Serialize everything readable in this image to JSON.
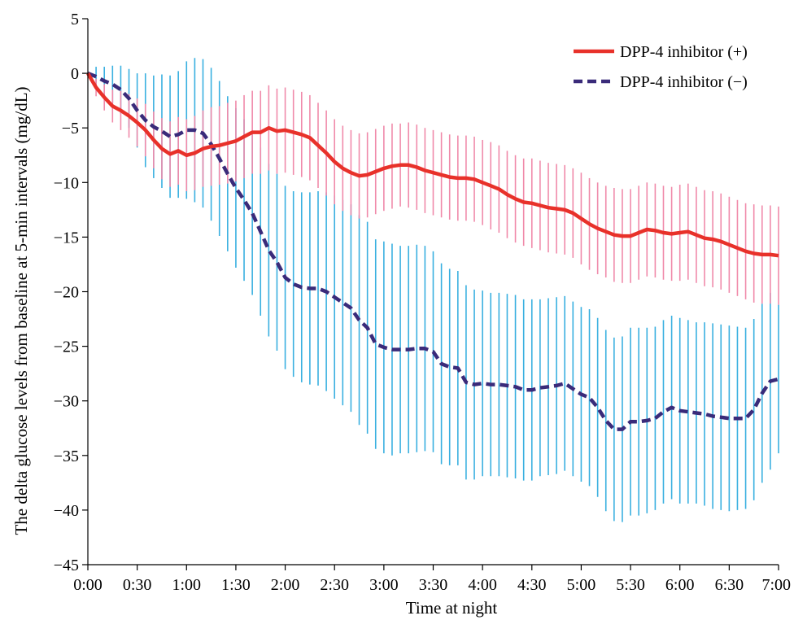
{
  "chart_data": {
    "type": "line",
    "title": "",
    "xlabel": "Time at night",
    "ylabel": "The delta glucose levels from baseline at 5-min intervals (mg/dL)",
    "xlim": [
      0,
      420
    ],
    "ylim": [
      -45,
      5
    ],
    "x_ticks": [
      0,
      30,
      60,
      90,
      120,
      150,
      180,
      210,
      240,
      270,
      300,
      330,
      360,
      390,
      420
    ],
    "x_tick_labels": [
      "0:00",
      "0:30",
      "1:00",
      "1:30",
      "2:00",
      "2:30",
      "3:00",
      "3:30",
      "4:00",
      "4:30",
      "5:00",
      "5:30",
      "6:00",
      "6:30",
      "7:00"
    ],
    "y_ticks": [
      5,
      0,
      -5,
      -10,
      -15,
      -20,
      -25,
      -30,
      -35,
      -40,
      -45
    ],
    "y_tick_labels": [
      "5",
      "0",
      "−5",
      "−10",
      "−15",
      "−20",
      "−25",
      "−30",
      "−35",
      "−40",
      "−45"
    ],
    "grid": false,
    "legend_position": "top-right",
    "error_bars": "vertical lines (mean ± SE) at each 5-min interval",
    "series": [
      {
        "name": "DPP-4 inhibitor (+)",
        "color": "#e8312a",
        "error_color": "#f08aaa",
        "line_style": "solid",
        "x": [
          0,
          5,
          10,
          15,
          20,
          25,
          30,
          35,
          40,
          45,
          50,
          55,
          60,
          65,
          70,
          75,
          80,
          85,
          90,
          95,
          100,
          105,
          110,
          115,
          120,
          125,
          130,
          135,
          140,
          145,
          150,
          155,
          160,
          165,
          170,
          175,
          180,
          185,
          190,
          195,
          200,
          205,
          210,
          215,
          220,
          225,
          230,
          235,
          240,
          245,
          250,
          255,
          260,
          265,
          270,
          275,
          280,
          285,
          290,
          295,
          300,
          305,
          310,
          315,
          320,
          325,
          330,
          335,
          340,
          345,
          350,
          355,
          360,
          365,
          370,
          375,
          380,
          385,
          390,
          395,
          400,
          405,
          410,
          415,
          420
        ],
        "y": [
          0.0,
          -1.3,
          -2.2,
          -3.0,
          -3.4,
          -3.9,
          -4.5,
          -5.2,
          -6.1,
          -6.9,
          -7.4,
          -7.1,
          -7.5,
          -7.3,
          -6.9,
          -6.7,
          -6.6,
          -6.4,
          -6.2,
          -5.8,
          -5.4,
          -5.4,
          -5.0,
          -5.3,
          -5.2,
          -5.4,
          -5.6,
          -5.9,
          -6.6,
          -7.3,
          -8.1,
          -8.7,
          -9.1,
          -9.4,
          -9.3,
          -9.0,
          -8.7,
          -8.5,
          -8.4,
          -8.4,
          -8.6,
          -8.9,
          -9.1,
          -9.3,
          -9.5,
          -9.6,
          -9.6,
          -9.7,
          -10.0,
          -10.3,
          -10.6,
          -11.1,
          -11.5,
          -11.8,
          -11.9,
          -12.1,
          -12.3,
          -12.4,
          -12.5,
          -12.8,
          -13.3,
          -13.8,
          -14.2,
          -14.5,
          -14.8,
          -14.9,
          -14.9,
          -14.6,
          -14.3,
          -14.4,
          -14.6,
          -14.7,
          -14.6,
          -14.5,
          -14.8,
          -15.1,
          -15.2,
          -15.4,
          -15.7,
          -16.0,
          -16.3,
          -16.5,
          -16.6,
          -16.6,
          -16.7
        ],
        "error": [
          0.0,
          0.8,
          1.2,
          1.5,
          1.8,
          2.0,
          2.2,
          2.4,
          2.6,
          2.8,
          3.0,
          3.1,
          3.3,
          3.4,
          3.5,
          3.6,
          3.6,
          3.7,
          3.7,
          3.8,
          3.8,
          3.8,
          3.9,
          3.9,
          3.9,
          3.9,
          3.9,
          3.9,
          3.9,
          3.9,
          3.9,
          3.9,
          3.9,
          3.9,
          3.9,
          3.9,
          3.9,
          3.9,
          3.8,
          3.9,
          3.9,
          3.9,
          3.9,
          3.9,
          3.9,
          3.9,
          3.9,
          3.9,
          3.9,
          4.0,
          4.0,
          4.0,
          4.0,
          4.0,
          4.1,
          4.1,
          4.1,
          4.1,
          4.1,
          4.1,
          4.2,
          4.2,
          4.2,
          4.2,
          4.3,
          4.3,
          4.3,
          4.3,
          4.3,
          4.3,
          4.3,
          4.3,
          4.4,
          4.4,
          4.4,
          4.4,
          4.4,
          4.4,
          4.4,
          4.4,
          4.4,
          4.5,
          4.5,
          4.5,
          4.5
        ]
      },
      {
        "name": "DPP-4 inhibitor (−)",
        "color": "#3a2b7a",
        "error_color": "#3ab0e0",
        "line_style": "dashed",
        "x": [
          0,
          5,
          10,
          15,
          20,
          25,
          30,
          35,
          40,
          45,
          50,
          55,
          60,
          65,
          70,
          75,
          80,
          85,
          90,
          95,
          100,
          105,
          110,
          115,
          120,
          125,
          130,
          135,
          140,
          145,
          150,
          155,
          160,
          165,
          170,
          175,
          180,
          185,
          190,
          195,
          200,
          205,
          210,
          215,
          220,
          225,
          230,
          235,
          240,
          245,
          250,
          255,
          260,
          265,
          270,
          275,
          280,
          285,
          290,
          295,
          300,
          305,
          310,
          315,
          320,
          325,
          330,
          335,
          340,
          345,
          350,
          355,
          360,
          365,
          370,
          375,
          380,
          385,
          390,
          395,
          400,
          405,
          410,
          415,
          420
        ],
        "y": [
          0.0,
          -0.3,
          -0.7,
          -1.0,
          -1.5,
          -2.3,
          -3.4,
          -4.3,
          -4.9,
          -5.3,
          -5.8,
          -5.6,
          -5.2,
          -5.2,
          -5.5,
          -6.5,
          -7.8,
          -9.2,
          -10.5,
          -11.6,
          -12.8,
          -14.5,
          -16.2,
          -17.3,
          -18.7,
          -19.3,
          -19.6,
          -19.7,
          -19.7,
          -20.0,
          -20.5,
          -21.0,
          -21.5,
          -22.6,
          -23.3,
          -24.8,
          -25.1,
          -25.3,
          -25.3,
          -25.3,
          -25.2,
          -25.2,
          -25.5,
          -26.6,
          -26.9,
          -27.0,
          -28.3,
          -28.5,
          -28.4,
          -28.5,
          -28.5,
          -28.6,
          -28.7,
          -29.0,
          -29.0,
          -28.8,
          -28.7,
          -28.6,
          -28.4,
          -28.9,
          -29.4,
          -29.7,
          -30.6,
          -31.8,
          -32.6,
          -32.6,
          -31.9,
          -31.9,
          -31.8,
          -31.6,
          -31.0,
          -30.6,
          -30.9,
          -31.0,
          -31.1,
          -31.2,
          -31.4,
          -31.5,
          -31.6,
          -31.6,
          -31.6,
          -30.8,
          -29.3,
          -28.2,
          -28.0
        ],
        "error": [
          0.0,
          0.9,
          1.3,
          1.7,
          2.2,
          2.7,
          3.4,
          4.3,
          4.7,
          5.2,
          5.6,
          5.8,
          6.3,
          6.6,
          6.8,
          7.0,
          7.1,
          7.1,
          7.3,
          7.4,
          7.5,
          7.7,
          7.9,
          8.1,
          8.4,
          8.5,
          8.7,
          8.8,
          8.9,
          9.1,
          9.3,
          9.4,
          9.5,
          9.6,
          9.7,
          9.6,
          9.7,
          9.7,
          9.5,
          9.5,
          9.5,
          9.4,
          9.2,
          9.2,
          9.0,
          8.9,
          8.9,
          8.7,
          8.5,
          8.4,
          8.4,
          8.4,
          8.4,
          8.3,
          8.3,
          8.1,
          8.1,
          8.1,
          8.0,
          8.0,
          8.0,
          8.1,
          8.2,
          8.3,
          8.4,
          8.5,
          8.6,
          8.6,
          8.5,
          8.4,
          8.4,
          8.4,
          8.5,
          8.4,
          8.3,
          8.4,
          8.5,
          8.5,
          8.5,
          8.4,
          8.3,
          8.3,
          8.2,
          8.1,
          6.8
        ]
      }
    ]
  }
}
